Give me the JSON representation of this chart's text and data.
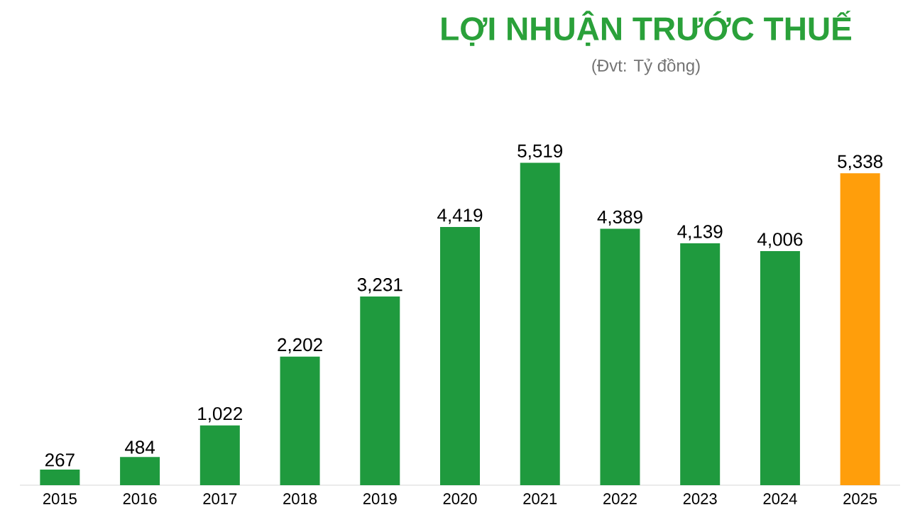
{
  "chart_data": {
    "type": "bar",
    "title": "LỢI NHUẬN TRƯỚC THUẾ",
    "subtitle": "(Đvt: Tỷ đồng)",
    "categories": [
      "2015",
      "2016",
      "2017",
      "2018",
      "2019",
      "2020",
      "2021",
      "2022",
      "2023",
      "2024",
      "2025"
    ],
    "values": [
      267,
      484,
      1022,
      2202,
      3231,
      4419,
      5519,
      4389,
      4139,
      4006,
      5338
    ],
    "colors": [
      "#1f9a3e",
      "#1f9a3e",
      "#1f9a3e",
      "#1f9a3e",
      "#1f9a3e",
      "#1f9a3e",
      "#1f9a3e",
      "#1f9a3e",
      "#1f9a3e",
      "#1f9a3e",
      "#ff9e0b"
    ],
    "value_labels": [
      "267",
      "484",
      "1,022",
      "2,202",
      "3,231",
      "4,419",
      "5,519",
      "4,389",
      "4,139",
      "4,006",
      "5,338"
    ]
  }
}
